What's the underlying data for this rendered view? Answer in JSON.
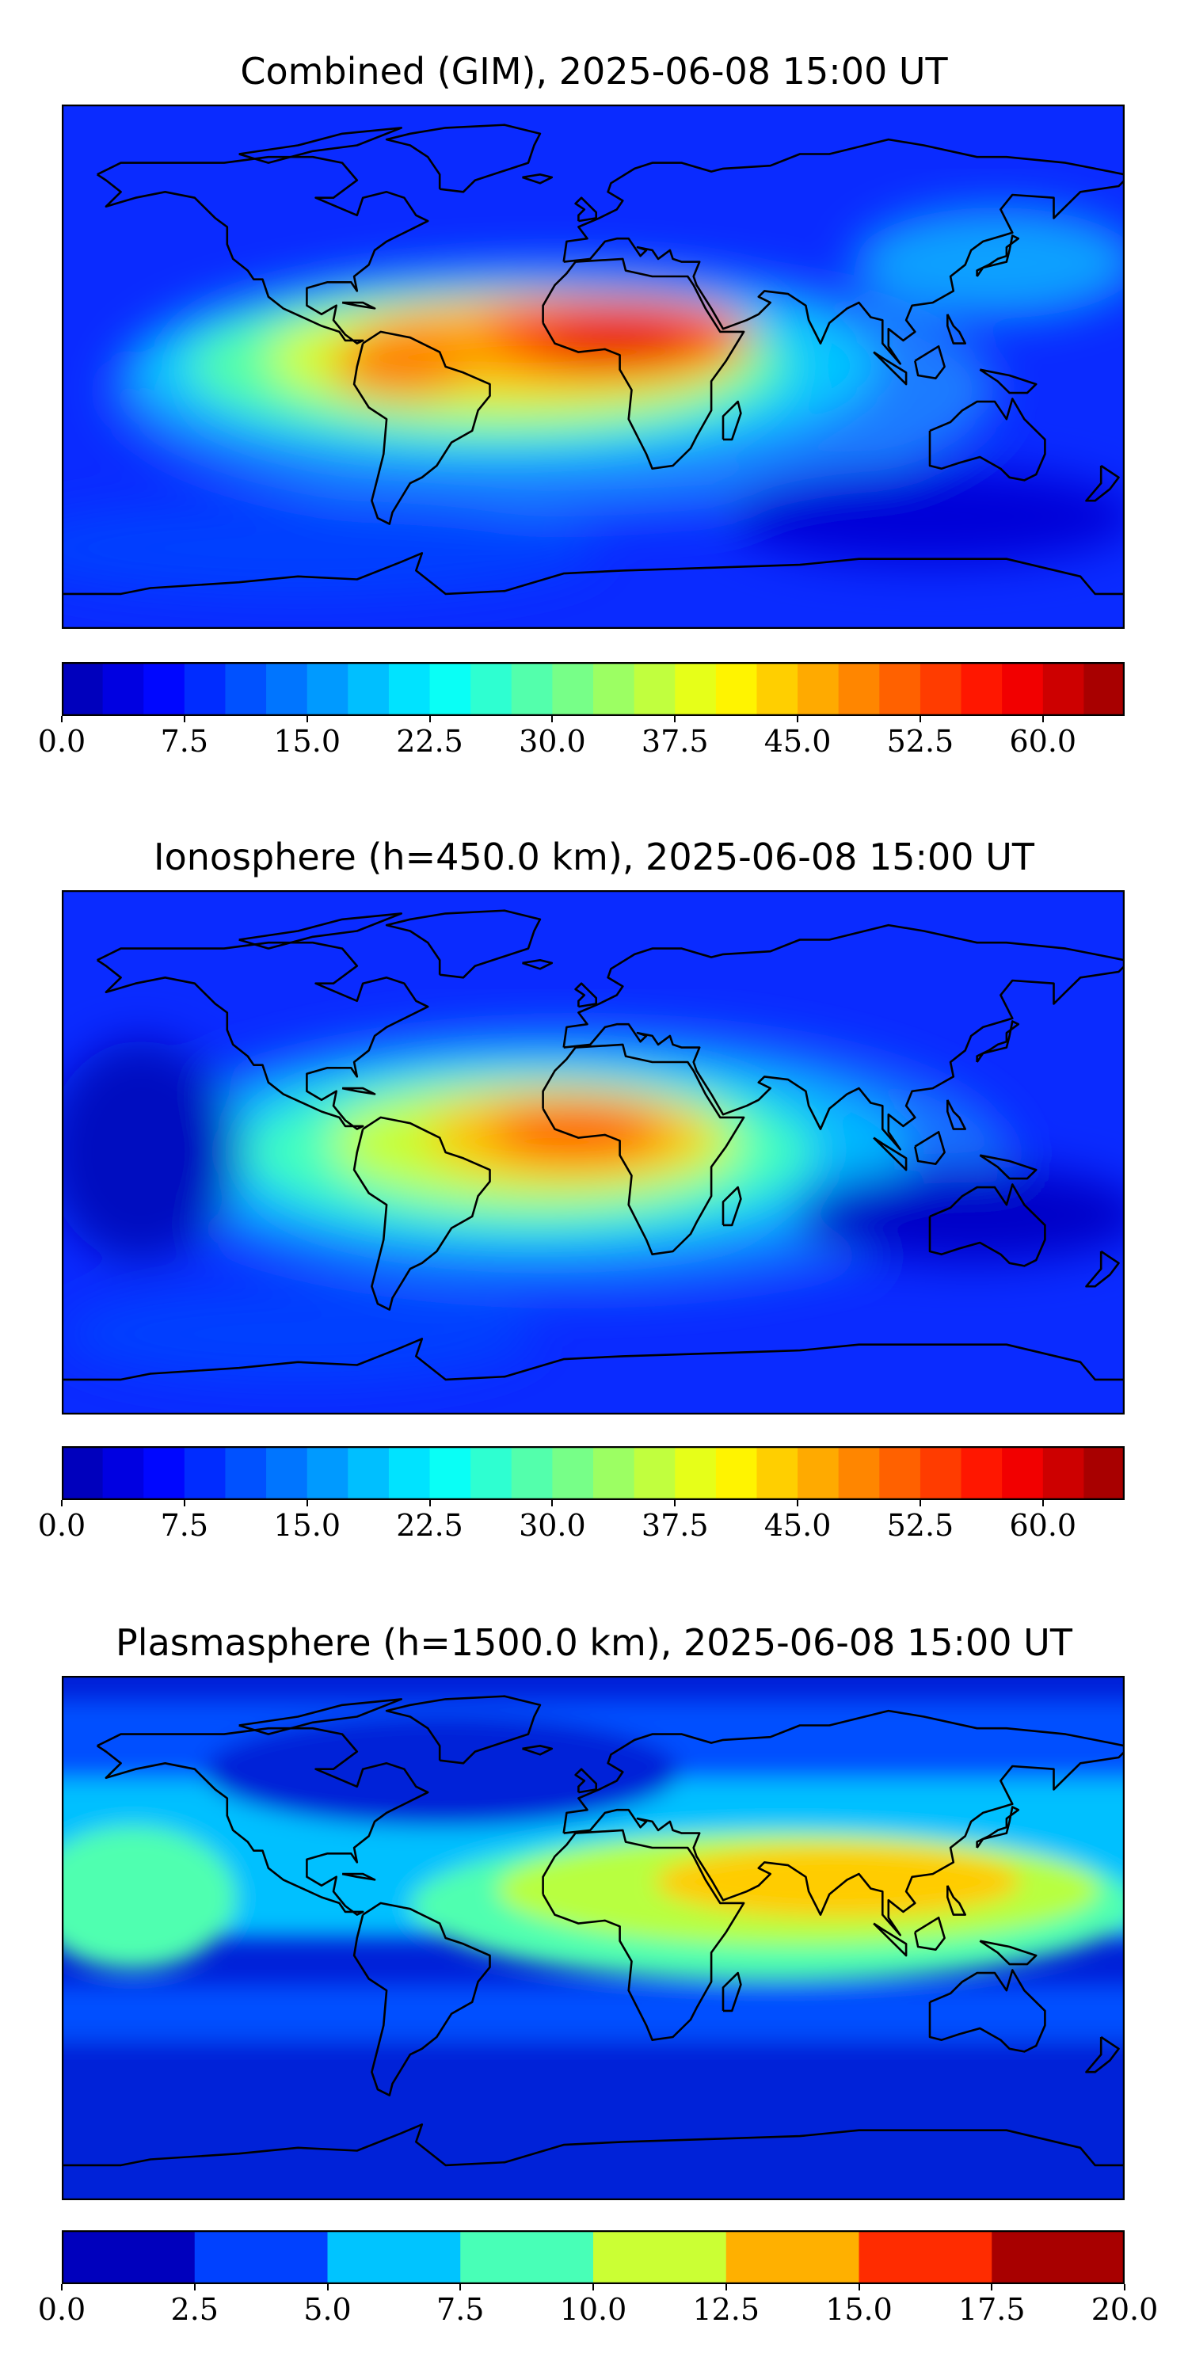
{
  "panels": [
    {
      "title": "Combined (GIM), 2025-06-08 15:00 UT",
      "colorbar": {
        "min": 0,
        "max": 65,
        "levels": 26,
        "ticks": [
          "0.0",
          "7.5",
          "15.0",
          "22.5",
          "30.0",
          "37.5",
          "45.0",
          "52.5",
          "60.0"
        ],
        "tick_values": [
          0,
          7.5,
          15,
          22.5,
          30,
          37.5,
          45,
          52.5,
          60
        ]
      },
      "scale": "jet"
    },
    {
      "title": "Ionosphere  (h=450.0 km), 2025-06-08 15:00 UT",
      "colorbar": {
        "min": 0,
        "max": 65,
        "levels": 26,
        "ticks": [
          "0.0",
          "7.5",
          "15.0",
          "22.5",
          "30.0",
          "37.5",
          "45.0",
          "52.5",
          "60.0"
        ],
        "tick_values": [
          0,
          7.5,
          15,
          22.5,
          30,
          37.5,
          45,
          52.5,
          60
        ]
      },
      "scale": "jet"
    },
    {
      "title": "Plasmasphere (h=1500.0 km), 2025-06-08 15:00 UT",
      "colorbar": {
        "min": 0,
        "max": 20,
        "levels": 8,
        "ticks": [
          "0.0",
          "2.5",
          "5.0",
          "7.5",
          "10.0",
          "12.5",
          "15.0",
          "17.5",
          "20.0"
        ],
        "tick_values": [
          0,
          2.5,
          5,
          7.5,
          10,
          12.5,
          15,
          17.5,
          20
        ]
      },
      "scale": "jet"
    }
  ]
}
